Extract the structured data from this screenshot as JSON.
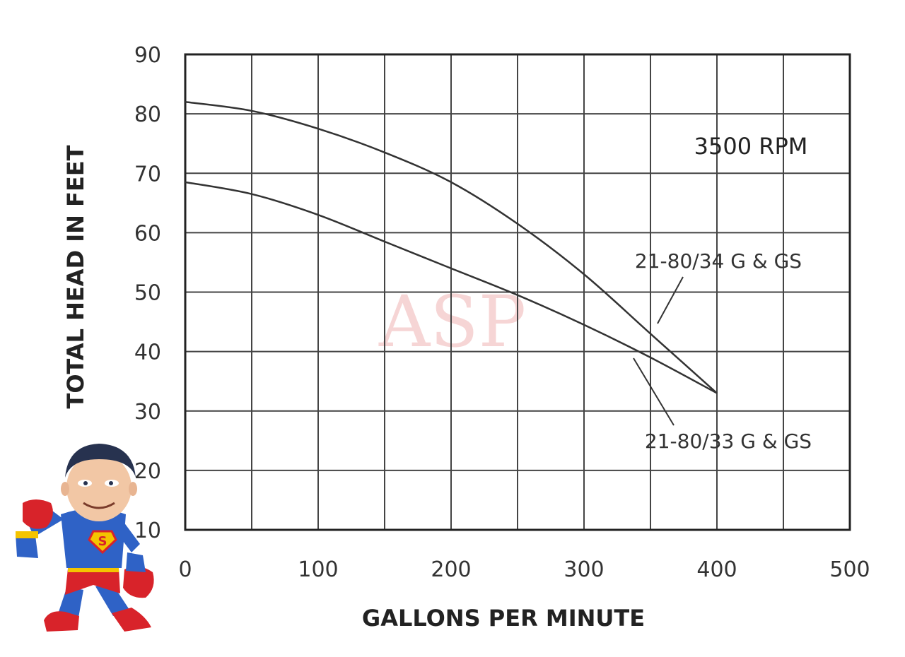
{
  "chart_data": {
    "type": "line",
    "title": "",
    "xlabel": "GALLONS PER MINUTE",
    "ylabel": "TOTAL HEAD IN FEET",
    "xlim": [
      0,
      500
    ],
    "ylim": [
      10,
      90
    ],
    "xticks": [
      0,
      100,
      200,
      300,
      400,
      500
    ],
    "yticks": [
      10,
      20,
      30,
      40,
      50,
      60,
      70,
      80,
      90
    ],
    "grid": true,
    "annotation": "3500 RPM",
    "watermark": "ASP",
    "series": [
      {
        "name": "21-80/34 G & GS",
        "x": [
          0,
          50,
          100,
          150,
          200,
          250,
          300,
          350,
          400
        ],
        "y": [
          82,
          80.5,
          77.5,
          73.5,
          68.5,
          61.5,
          53,
          43,
          33
        ]
      },
      {
        "name": "21-80/33 G & GS",
        "x": [
          0,
          50,
          100,
          150,
          200,
          250,
          300,
          350,
          400
        ],
        "y": [
          68.5,
          66.5,
          63,
          58.5,
          54,
          49.5,
          44.5,
          39,
          33
        ]
      }
    ],
    "mascot": "superhero-mascot"
  }
}
